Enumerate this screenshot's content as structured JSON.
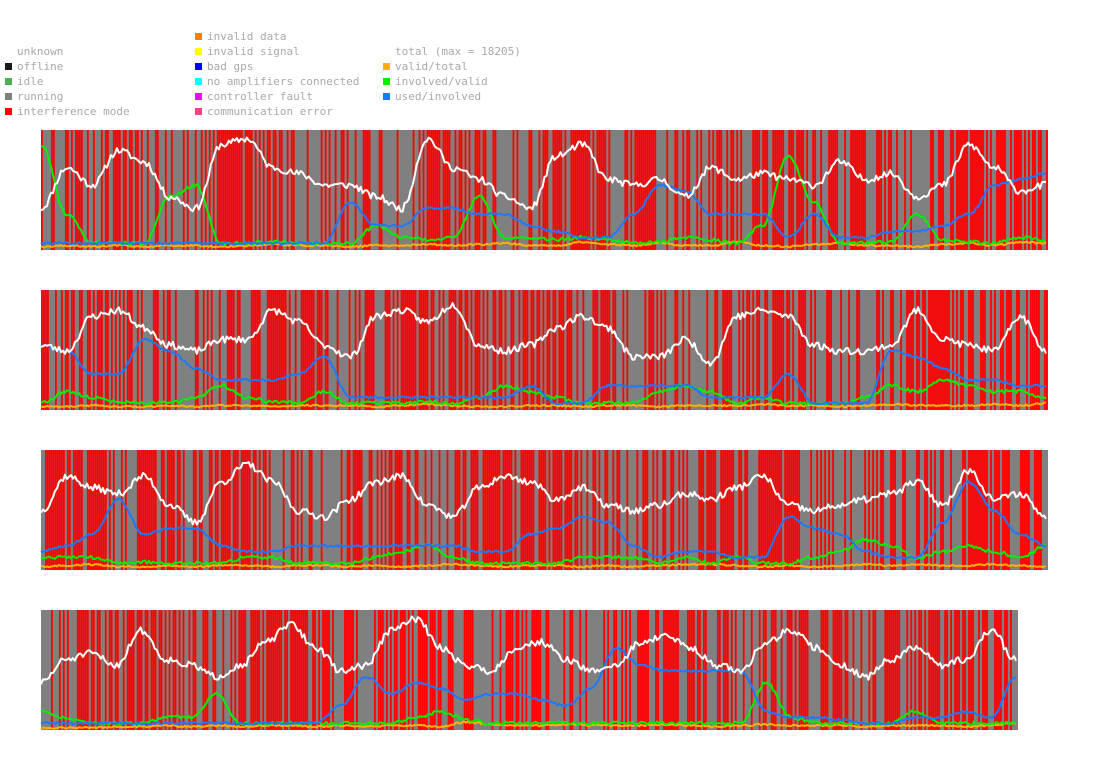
{
  "legend": {
    "status": [
      {
        "label": "unknown",
        "color": null
      },
      {
        "label": "offline",
        "color": "#1a1a1a"
      },
      {
        "label": "idle",
        "color": "#4caf50"
      },
      {
        "label": "running",
        "color": "#808080"
      },
      {
        "label": "interference mode",
        "color": "#ff0000"
      }
    ],
    "errors": [
      {
        "label": "invalid data",
        "color": "#ff8000"
      },
      {
        "label": "invalid signal",
        "color": "#ffff00"
      },
      {
        "label": "bad gps",
        "color": "#0000ff"
      },
      {
        "label": "no amplifiers connected",
        "color": "#00ffff"
      },
      {
        "label": "controller fault",
        "color": "#ff00ff"
      },
      {
        "label": "communication error",
        "color": "#ff4080"
      }
    ],
    "lines": [
      {
        "label": "total (max = 18205)",
        "color": null
      },
      {
        "label": "valid/total",
        "color": "#ffb000"
      },
      {
        "label": "involved/valid",
        "color": "#00ee00"
      },
      {
        "label": "used/involved",
        "color": "#1e78ff"
      }
    ]
  },
  "chart_data": {
    "type": "line",
    "title": "",
    "total_max": 18205,
    "series_colors": {
      "total": "#ffffff",
      "valid_total": "#ffb000",
      "involved_valid": "#00ee00",
      "used_involved": "#1e78ff",
      "running": "#808080",
      "interference": "#ff0000"
    },
    "panels": [
      {
        "samples": 504,
        "seed": 11,
        "total": [
          0.35,
          0.7,
          0.55,
          0.85,
          0.75,
          0.45,
          0.35,
          0.9,
          0.95,
          0.7,
          0.65,
          0.55,
          0.55,
          0.45,
          0.35,
          0.95,
          0.7,
          0.6,
          0.45,
          0.35,
          0.8,
          0.9,
          0.6,
          0.55,
          0.6,
          0.45,
          0.7,
          0.6,
          0.65,
          0.6,
          0.55,
          0.75,
          0.6,
          0.65,
          0.45,
          0.55,
          0.9,
          0.7,
          0.5,
          0.55
        ],
        "valid_total": [
          0.02,
          0.03,
          0.02,
          0.03,
          0.02,
          0.03,
          0.03,
          0.02,
          0.03,
          0.04,
          0.03,
          0.03,
          0.02,
          0.03,
          0.03,
          0.04,
          0.03,
          0.04,
          0.05,
          0.03,
          0.03,
          0.06,
          0.04,
          0.03,
          0.05,
          0.03,
          0.03,
          0.06,
          0.03,
          0.02,
          0.04,
          0.05,
          0.03,
          0.03,
          0.02,
          0.04,
          0.05,
          0.03,
          0.06,
          0.05
        ],
        "involved_valid": [
          0.9,
          0.3,
          0.05,
          0.05,
          0.05,
          0.45,
          0.55,
          0.05,
          0.05,
          0.06,
          0.05,
          0.05,
          0.05,
          0.2,
          0.1,
          0.08,
          0.1,
          0.45,
          0.1,
          0.1,
          0.08,
          0.1,
          0.08,
          0.05,
          0.06,
          0.1,
          0.08,
          0.05,
          0.2,
          0.8,
          0.4,
          0.05,
          0.05,
          0.06,
          0.3,
          0.08,
          0.06,
          0.05,
          0.1,
          0.08
        ],
        "used_involved": [
          0.05,
          0.05,
          0.05,
          0.05,
          0.05,
          0.05,
          0.05,
          0.05,
          0.05,
          0.05,
          0.05,
          0.05,
          0.4,
          0.2,
          0.2,
          0.35,
          0.35,
          0.3,
          0.3,
          0.2,
          0.15,
          0.1,
          0.1,
          0.3,
          0.55,
          0.5,
          0.3,
          0.3,
          0.3,
          0.1,
          0.3,
          0.1,
          0.1,
          0.15,
          0.15,
          0.2,
          0.3,
          0.55,
          0.6,
          0.65
        ]
      },
      {
        "samples": 504,
        "seed": 23,
        "total": [
          0.55,
          0.5,
          0.8,
          0.85,
          0.7,
          0.55,
          0.5,
          0.6,
          0.6,
          0.85,
          0.75,
          0.55,
          0.45,
          0.8,
          0.85,
          0.75,
          0.9,
          0.55,
          0.5,
          0.55,
          0.7,
          0.8,
          0.7,
          0.45,
          0.45,
          0.6,
          0.4,
          0.8,
          0.85,
          0.8,
          0.55,
          0.5,
          0.5,
          0.55,
          0.85,
          0.6,
          0.55,
          0.5,
          0.8,
          0.5
        ],
        "valid_total": [
          0.02,
          0.02,
          0.03,
          0.02,
          0.02,
          0.03,
          0.02,
          0.03,
          0.03,
          0.02,
          0.03,
          0.03,
          0.03,
          0.02,
          0.03,
          0.04,
          0.03,
          0.02,
          0.02,
          0.03,
          0.03,
          0.02,
          0.03,
          0.03,
          0.02,
          0.03,
          0.03,
          0.03,
          0.04,
          0.03,
          0.03,
          0.02,
          0.03,
          0.04,
          0.03,
          0.03,
          0.03,
          0.04,
          0.03,
          0.05
        ],
        "involved_valid": [
          0.05,
          0.15,
          0.1,
          0.06,
          0.05,
          0.05,
          0.1,
          0.2,
          0.1,
          0.06,
          0.05,
          0.15,
          0.05,
          0.05,
          0.05,
          0.06,
          0.05,
          0.1,
          0.2,
          0.15,
          0.1,
          0.05,
          0.05,
          0.05,
          0.15,
          0.2,
          0.15,
          0.05,
          0.1,
          0.05,
          0.05,
          0.05,
          0.1,
          0.2,
          0.15,
          0.25,
          0.2,
          0.15,
          0.15,
          0.1
        ],
        "used_involved": [
          0.55,
          0.5,
          0.3,
          0.3,
          0.6,
          0.5,
          0.35,
          0.25,
          0.25,
          0.25,
          0.3,
          0.45,
          0.1,
          0.1,
          0.1,
          0.1,
          0.1,
          0.1,
          0.1,
          0.2,
          0.05,
          0.05,
          0.2,
          0.2,
          0.2,
          0.2,
          0.1,
          0.1,
          0.1,
          0.3,
          0.05,
          0.05,
          0.05,
          0.5,
          0.45,
          0.35,
          0.25,
          0.25,
          0.2,
          0.2
        ]
      },
      {
        "samples": 504,
        "seed": 37,
        "total": [
          0.5,
          0.8,
          0.7,
          0.65,
          0.8,
          0.55,
          0.4,
          0.75,
          0.9,
          0.75,
          0.5,
          0.45,
          0.6,
          0.75,
          0.8,
          0.55,
          0.45,
          0.7,
          0.8,
          0.75,
          0.6,
          0.7,
          0.55,
          0.5,
          0.55,
          0.65,
          0.6,
          0.7,
          0.8,
          0.55,
          0.5,
          0.55,
          0.6,
          0.65,
          0.75,
          0.55,
          0.85,
          0.6,
          0.65,
          0.45
        ],
        "valid_total": [
          0.02,
          0.03,
          0.04,
          0.02,
          0.02,
          0.03,
          0.02,
          0.03,
          0.03,
          0.02,
          0.03,
          0.03,
          0.02,
          0.03,
          0.02,
          0.03,
          0.04,
          0.03,
          0.02,
          0.03,
          0.03,
          0.02,
          0.03,
          0.02,
          0.03,
          0.04,
          0.04,
          0.03,
          0.02,
          0.03,
          0.02,
          0.03,
          0.04,
          0.03,
          0.04,
          0.03,
          0.03,
          0.04,
          0.03,
          0.02
        ],
        "involved_valid": [
          0.1,
          0.1,
          0.1,
          0.05,
          0.06,
          0.05,
          0.05,
          0.05,
          0.1,
          0.1,
          0.05,
          0.05,
          0.05,
          0.1,
          0.15,
          0.2,
          0.1,
          0.05,
          0.05,
          0.05,
          0.05,
          0.1,
          0.1,
          0.1,
          0.05,
          0.1,
          0.05,
          0.1,
          0.05,
          0.05,
          0.1,
          0.15,
          0.25,
          0.2,
          0.1,
          0.15,
          0.2,
          0.15,
          0.1,
          0.2
        ],
        "used_involved": [
          0.15,
          0.2,
          0.3,
          0.6,
          0.3,
          0.35,
          0.35,
          0.2,
          0.15,
          0.15,
          0.2,
          0.2,
          0.2,
          0.2,
          0.2,
          0.2,
          0.2,
          0.15,
          0.15,
          0.3,
          0.35,
          0.45,
          0.4,
          0.2,
          0.1,
          0.15,
          0.15,
          0.1,
          0.1,
          0.45,
          0.35,
          0.3,
          0.15,
          0.1,
          0.1,
          0.4,
          0.75,
          0.5,
          0.3,
          0.2
        ]
      },
      {
        "samples": 490,
        "seed": 51,
        "total": [
          0.4,
          0.6,
          0.65,
          0.55,
          0.85,
          0.6,
          0.55,
          0.45,
          0.55,
          0.75,
          0.9,
          0.7,
          0.5,
          0.55,
          0.85,
          0.95,
          0.7,
          0.55,
          0.5,
          0.7,
          0.75,
          0.6,
          0.5,
          0.55,
          0.75,
          0.8,
          0.7,
          0.55,
          0.5,
          0.75,
          0.85,
          0.7,
          0.55,
          0.45,
          0.6,
          0.7,
          0.55,
          0.6,
          0.85,
          0.6
        ],
        "valid_total": [
          0.01,
          0.01,
          0.01,
          0.02,
          0.02,
          0.03,
          0.02,
          0.03,
          0.02,
          0.03,
          0.03,
          0.02,
          0.03,
          0.02,
          0.03,
          0.03,
          0.02,
          0.06,
          0.04,
          0.03,
          0.03,
          0.04,
          0.03,
          0.03,
          0.03,
          0.04,
          0.03,
          0.02,
          0.03,
          0.04,
          0.03,
          0.03,
          0.03,
          0.02,
          0.03,
          0.03,
          0.03,
          0.02,
          0.03,
          0.05
        ],
        "involved_valid": [
          0.15,
          0.1,
          0.05,
          0.05,
          0.05,
          0.1,
          0.1,
          0.3,
          0.05,
          0.05,
          0.05,
          0.05,
          0.05,
          0.05,
          0.05,
          0.1,
          0.15,
          0.08,
          0.05,
          0.05,
          0.05,
          0.05,
          0.05,
          0.05,
          0.05,
          0.05,
          0.05,
          0.05,
          0.05,
          0.4,
          0.1,
          0.05,
          0.05,
          0.05,
          0.05,
          0.15,
          0.05,
          0.05,
          0.05,
          0.05
        ],
        "used_involved": [
          0.05,
          0.05,
          0.05,
          0.05,
          0.05,
          0.05,
          0.05,
          0.05,
          0.05,
          0.05,
          0.05,
          0.05,
          0.2,
          0.45,
          0.3,
          0.4,
          0.35,
          0.25,
          0.3,
          0.3,
          0.25,
          0.2,
          0.35,
          0.7,
          0.55,
          0.5,
          0.5,
          0.5,
          0.5,
          0.15,
          0.1,
          0.1,
          0.08,
          0.05,
          0.05,
          0.1,
          0.1,
          0.15,
          0.1,
          0.45
        ]
      }
    ]
  }
}
